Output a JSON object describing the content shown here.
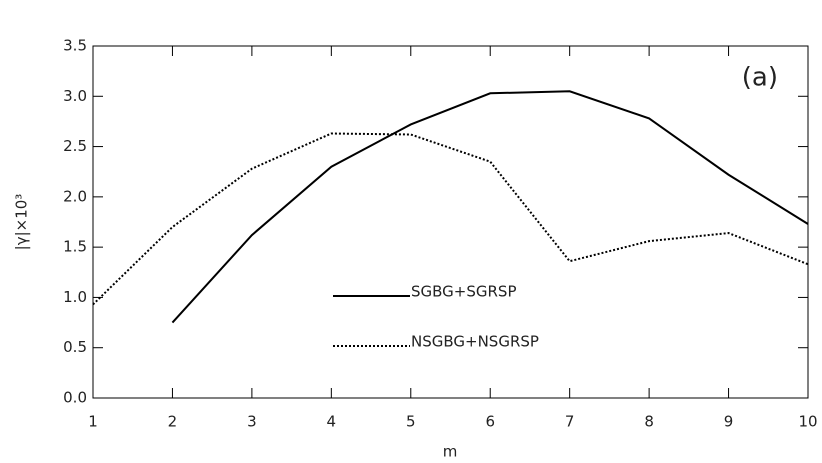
{
  "chart_data": {
    "type": "line",
    "x_label": "m",
    "y_label": "|γ|×10³",
    "annotation": "(a)",
    "x": [
      1,
      2,
      3,
      4,
      5,
      6,
      7,
      8,
      9,
      10
    ],
    "series": [
      {
        "name": "SGBG+SGRSP",
        "color": "#000000",
        "dash": "solid",
        "values": [
          null,
          0.75,
          1.62,
          2.3,
          2.72,
          3.03,
          3.05,
          2.78,
          2.22,
          1.73
        ]
      },
      {
        "name": "NSGBG+NSGRSP",
        "color": "#000000",
        "dash": "dotted",
        "values": [
          0.93,
          1.7,
          2.28,
          2.63,
          2.62,
          2.35,
          1.36,
          1.56,
          1.64,
          1.33
        ]
      }
    ],
    "xlim": [
      1,
      10
    ],
    "xticks": [
      1,
      2,
      3,
      4,
      5,
      6,
      7,
      8,
      9,
      10
    ],
    "ylim": [
      0,
      3.5
    ],
    "yticks": [
      {
        "value": 0,
        "label": "0.0"
      },
      0.5,
      {
        "value": 1,
        "label": "1.0"
      },
      1.5,
      {
        "value": 2,
        "label": "2.0"
      },
      2.5,
      {
        "value": 3,
        "label": "3.0"
      },
      3.5
    ]
  }
}
